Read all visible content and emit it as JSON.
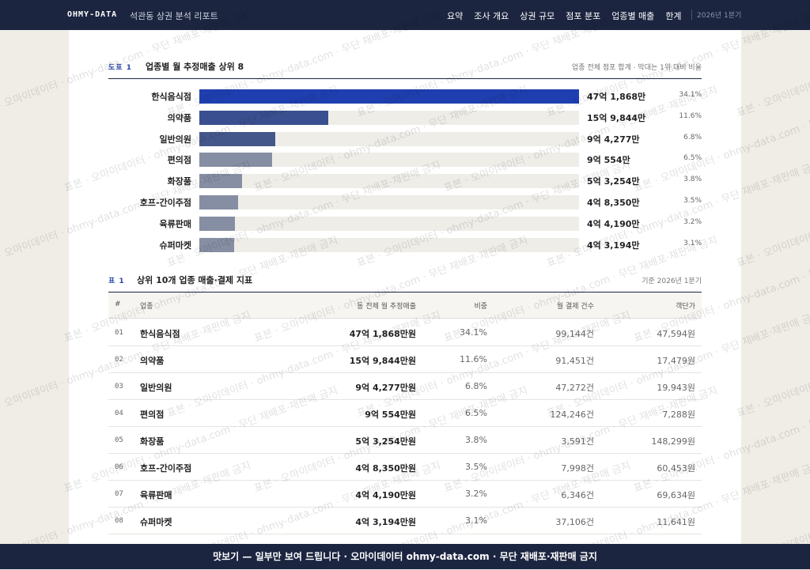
{
  "nav": {
    "brand": "OHMY-DATA",
    "title": "석관동 상권 분석 리포트",
    "links": [
      "요약",
      "조사 개요",
      "상권 규모",
      "점포 분포",
      "업종별 매출",
      "한계"
    ],
    "period": "2026년 1분기"
  },
  "figure": {
    "type": "bar",
    "label": "도표 1",
    "title": "업종별 월 추정매출 상위 8",
    "note": "업종 전체 점포 합계 · 막대는 1위 대비 비율",
    "categories": [
      "한식음식점",
      "의약품",
      "일반의원",
      "편의점",
      "화장품",
      "호프-간이주점",
      "육류판매",
      "슈퍼마켓"
    ],
    "values": [
      4718680000,
      1598440000,
      942770000,
      905540000,
      532540000,
      483500000,
      441900000,
      431940000
    ],
    "value_labels": [
      "47억 1,868만",
      "15억 9,844만",
      "9억 4,277만",
      "9억 554만",
      "5억 3,254만",
      "4억 8,350만",
      "4억 4,190만",
      "4억 3,194만"
    ],
    "shares": [
      "34.1%",
      "11.6%",
      "6.8%",
      "6.5%",
      "3.8%",
      "3.5%",
      "3.2%",
      "3.1%"
    ],
    "colors": [
      "#1f3fb0",
      "#3a4f8f",
      "#44578a",
      "#868ea3",
      "#868ea3",
      "#868ea3",
      "#868ea3",
      "#868ea3"
    ]
  },
  "table": {
    "label": "표 1",
    "title": "상위 10개 업종 매출·결제 지표",
    "note": "기준 2026년 1분기",
    "columns": [
      "#",
      "업종",
      "동 전체 월 추정매출",
      "비중",
      "월 결제 건수",
      "객단가"
    ],
    "rows": [
      [
        "01",
        "한식음식점",
        "47억 1,868만원",
        "34.1%",
        "99,144건",
        "47,594원"
      ],
      [
        "02",
        "의약품",
        "15억 9,844만원",
        "11.6%",
        "91,451건",
        "17,479원"
      ],
      [
        "03",
        "일반의원",
        "9억 4,277만원",
        "6.8%",
        "47,272건",
        "19,943원"
      ],
      [
        "04",
        "편의점",
        "9억 554만원",
        "6.5%",
        "124,246건",
        "7,288원"
      ],
      [
        "05",
        "화장품",
        "5억 3,254만원",
        "3.8%",
        "3,591건",
        "148,299원"
      ],
      [
        "06",
        "호프-간이주점",
        "4억 8,350만원",
        "3.5%",
        "7,998건",
        "60,453원"
      ],
      [
        "07",
        "육류판매",
        "4억 4,190만원",
        "3.2%",
        "6,346건",
        "69,634원"
      ],
      [
        "08",
        "슈퍼마켓",
        "4억 3,194만원",
        "3.1%",
        "37,106건",
        "11,641원"
      ]
    ]
  },
  "watermark": "표본 · 오마이데이터 · ohmy-data.com · 무단 재배포·재판매 금지",
  "footer": "맛보기 — 일부만 보여 드립니다 · 오마이데이터 ohmy-data.com · 무단 재배포·재판매 금지"
}
